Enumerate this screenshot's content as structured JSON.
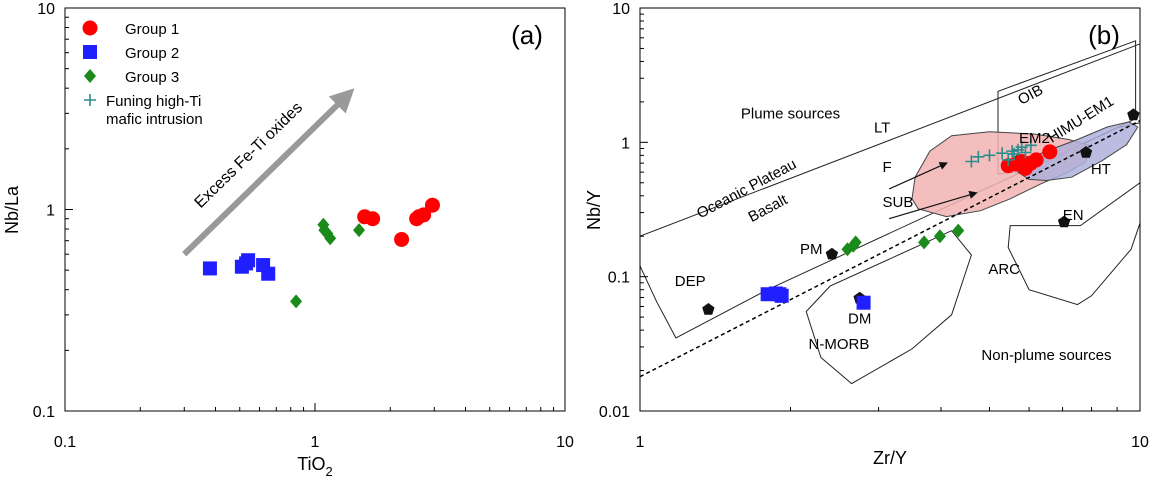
{
  "colors": {
    "group1": "#ff0000",
    "group2": "#1f1fff",
    "group3": "#1a8a1a",
    "funing": "#2b8c8c",
    "reference": "#111111",
    "arrow": "#999999",
    "lt_fill": "#f2b3b3",
    "ht_fill": "#aeb0dc"
  },
  "chart_data": [
    {
      "type": "scatter",
      "panel_label": "(a)",
      "xlabel": "TiO",
      "xlabel_sub": "2",
      "ylabel": "Nb/La",
      "xscale": "log",
      "yscale": "log",
      "xlim": [
        0.1,
        10
      ],
      "ylim": [
        0.1,
        10
      ],
      "x_ticks": [
        "0.1",
        "1",
        "10"
      ],
      "y_ticks": [
        "0.1",
        "1",
        "10"
      ],
      "grid": false,
      "legend_position": "top-left",
      "legend": [
        {
          "label": "Group 1",
          "marker": "circle",
          "color": "#ff0000"
        },
        {
          "label": "Group 2",
          "marker": "square",
          "color": "#1f1fff"
        },
        {
          "label": "Group 3",
          "marker": "diamond",
          "color": "#1a8a1a"
        },
        {
          "label": "Funing high-Ti",
          "label2": "mafic intrusion",
          "marker": "plus",
          "color": "#2b8c8c"
        }
      ],
      "trend_arrow": {
        "label": "Excess Fe-Ti oxides",
        "from": [
          0.3,
          0.6
        ],
        "to": [
          1.35,
          3.7
        ]
      },
      "series": [
        {
          "name": "Group 1",
          "marker": "circle",
          "points": [
            [
              1.58,
              0.92
            ],
            [
              1.7,
              0.9
            ],
            [
              2.55,
              0.9
            ],
            [
              2.72,
              0.94
            ],
            [
              2.6,
              0.92
            ],
            [
              2.95,
              1.05
            ],
            [
              2.22,
              0.71
            ]
          ]
        },
        {
          "name": "Group 2",
          "marker": "square",
          "points": [
            [
              0.38,
              0.51
            ],
            [
              0.51,
              0.52
            ],
            [
              0.54,
              0.56
            ],
            [
              0.53,
              0.54
            ],
            [
              0.62,
              0.53
            ],
            [
              0.65,
              0.48
            ]
          ]
        },
        {
          "name": "Group 3",
          "marker": "diamond",
          "points": [
            [
              1.08,
              0.84
            ],
            [
              1.09,
              0.79
            ],
            [
              1.12,
              0.76
            ],
            [
              1.15,
              0.72
            ],
            [
              1.5,
              0.79
            ],
            [
              0.84,
              0.35
            ]
          ]
        }
      ]
    },
    {
      "type": "scatter",
      "panel_label": "(b)",
      "xlabel": "Zr/Y",
      "ylabel": "Nb/Y",
      "xscale": "log",
      "yscale": "log",
      "xlim": [
        1,
        10
      ],
      "ylim": [
        0.01,
        10
      ],
      "x_ticks": [
        "1",
        "10"
      ],
      "y_ticks": [
        "0.01",
        "0.1",
        "1",
        "10"
      ],
      "grid": false,
      "legend_position": "none",
      "region_labels": [
        {
          "text": "Plume sources",
          "at": [
            2.0,
            1.5
          ]
        },
        {
          "text": "Non-plume sources",
          "at": [
            6.5,
            0.024
          ]
        },
        {
          "text": "Oceanic Plateau",
          "at": [
            1.65,
            0.42
          ],
          "rotate": -28
        },
        {
          "text": "Basalt",
          "at": [
            1.82,
            0.3
          ],
          "rotate": -28
        },
        {
          "text": "OIB",
          "at": [
            6.1,
            2.1
          ],
          "rotate": -28
        },
        {
          "text": "HIMU-EM1",
          "at": [
            7.7,
            1.38
          ],
          "rotate": -32
        },
        {
          "text": "LT",
          "at": [
            3.05,
            1.18
          ]
        },
        {
          "text": "EM2",
          "at": [
            6.15,
            0.99
          ]
        },
        {
          "text": "HT",
          "at": [
            8.35,
            0.58
          ]
        },
        {
          "text": "F",
          "at": [
            3.12,
            0.6
          ]
        },
        {
          "text": "SUB",
          "at": [
            3.28,
            0.33
          ]
        },
        {
          "text": "EN",
          "at": [
            7.35,
            0.265
          ]
        },
        {
          "text": "ARC",
          "at": [
            5.35,
            0.105
          ]
        },
        {
          "text": "PM",
          "at": [
            2.2,
            0.148
          ]
        },
        {
          "text": "DEP",
          "at": [
            1.26,
            0.085
          ]
        },
        {
          "text": "DM",
          "at": [
            2.75,
            0.045
          ]
        },
        {
          "text": "N-MORB",
          "at": [
            2.5,
            0.029
          ]
        }
      ],
      "reference_points": [
        {
          "name": "DEP",
          "x": 1.37,
          "y": 0.057
        },
        {
          "name": "PM",
          "x": 2.42,
          "y": 0.147
        },
        {
          "name": "DM",
          "x": 2.75,
          "y": 0.069
        },
        {
          "name": "EN",
          "x": 7.05,
          "y": 0.255
        },
        {
          "name": "EM2",
          "x": 5.7,
          "y": 0.73
        },
        {
          "name": "HIMU",
          "x": 7.8,
          "y": 0.84
        },
        {
          "name": "EM1",
          "x": 9.7,
          "y": 1.6
        }
      ],
      "polygons": [
        {
          "name": "Oceanic Plateau Basalt field",
          "points": [
            [
              1.08,
              0.065
            ],
            [
              1.18,
              0.035
            ],
            [
              1.8,
              0.08
            ],
            [
              9.0,
              1.28
            ],
            [
              10.0,
              1.4
            ],
            [
              10.0,
              5.4
            ],
            [
              1.0,
              0.2
            ],
            [
              1.0,
              0.12
            ]
          ]
        },
        {
          "name": "OIB field",
          "points": [
            [
              5.2,
              0.58
            ],
            [
              5.2,
              2.4
            ],
            [
              9.8,
              5.7
            ],
            [
              9.8,
              1.5
            ],
            [
              6.0,
              0.62
            ]
          ]
        },
        {
          "name": "ARC field",
          "points": [
            [
              5.45,
              0.165
            ],
            [
              6.0,
              0.08
            ],
            [
              7.5,
              0.062
            ],
            [
              8.0,
              0.072
            ],
            [
              9.6,
              0.16
            ],
            [
              10.0,
              0.25
            ],
            [
              10.0,
              0.5
            ],
            [
              7.6,
              0.24
            ],
            [
              5.5,
              0.24
            ]
          ]
        },
        {
          "name": "N-MORB field",
          "points": [
            [
              2.3,
              0.025
            ],
            [
              2.65,
              0.016
            ],
            [
              3.5,
              0.029
            ],
            [
              4.2,
              0.052
            ],
            [
              4.6,
              0.145
            ],
            [
              4.2,
              0.22
            ],
            [
              2.4,
              0.085
            ],
            [
              2.15,
              0.055
            ]
          ]
        }
      ],
      "filled_fields": [
        {
          "name": "LT",
          "points": [
            [
              3.6,
              0.32
            ],
            [
              3.5,
              0.38
            ],
            [
              3.55,
              0.55
            ],
            [
              3.8,
              0.86
            ],
            [
              4.2,
              1.12
            ],
            [
              5.0,
              1.2
            ],
            [
              6.2,
              1.15
            ],
            [
              7.2,
              1.05
            ],
            [
              7.9,
              0.95
            ],
            [
              7.8,
              0.72
            ],
            [
              7.2,
              0.6
            ],
            [
              6.4,
              0.5
            ],
            [
              5.5,
              0.38
            ],
            [
              4.8,
              0.31
            ],
            [
              4.1,
              0.28
            ]
          ]
        },
        {
          "name": "HT",
          "points": [
            [
              5.7,
              0.6
            ],
            [
              5.9,
              0.74
            ],
            [
              6.5,
              0.86
            ],
            [
              7.5,
              1.05
            ],
            [
              8.6,
              1.3
            ],
            [
              9.5,
              1.42
            ],
            [
              9.9,
              1.3
            ],
            [
              9.4,
              0.96
            ],
            [
              8.4,
              0.73
            ],
            [
              7.3,
              0.55
            ],
            [
              6.5,
              0.52
            ],
            [
              6.0,
              0.53
            ]
          ]
        }
      ],
      "reference_lines": [
        {
          "name": "dashed trend",
          "style": "dashed",
          "from": [
            1.0,
            0.018
          ],
          "to": [
            10.0,
            1.45
          ]
        }
      ],
      "trend_arrows": [
        {
          "from": [
            3.15,
            0.45
          ],
          "to": [
            4.1,
            0.7
          ]
        },
        {
          "from": [
            3.15,
            0.27
          ],
          "to": [
            4.7,
            0.42
          ]
        }
      ],
      "series": [
        {
          "name": "Group 1",
          "marker": "circle",
          "points": [
            [
              5.45,
              0.67
            ],
            [
              5.65,
              0.69
            ],
            [
              5.8,
              0.72
            ],
            [
              6.05,
              0.7
            ],
            [
              5.95,
              0.68
            ],
            [
              5.9,
              0.64
            ],
            [
              6.2,
              0.74
            ],
            [
              6.6,
              0.85
            ]
          ]
        },
        {
          "name": "Group 2",
          "marker": "square",
          "points": [
            [
              1.8,
              0.074
            ],
            [
              1.87,
              0.075
            ],
            [
              1.92,
              0.072
            ],
            [
              1.9,
              0.074
            ],
            [
              2.8,
              0.064
            ]
          ]
        },
        {
          "name": "Group 3",
          "marker": "diamond",
          "points": [
            [
              2.6,
              0.16
            ],
            [
              2.67,
              0.17
            ],
            [
              2.7,
              0.18
            ],
            [
              3.7,
              0.18
            ],
            [
              3.98,
              0.2
            ],
            [
              4.33,
              0.22
            ]
          ]
        },
        {
          "name": "Funing high-Ti mafic intrusion",
          "marker": "plus",
          "points": [
            [
              4.6,
              0.72
            ],
            [
              4.75,
              0.78
            ],
            [
              5.0,
              0.8
            ],
            [
              5.3,
              0.83
            ],
            [
              5.55,
              0.86
            ],
            [
              5.7,
              0.88
            ],
            [
              5.8,
              0.92
            ],
            [
              5.6,
              0.82
            ],
            [
              5.9,
              0.84
            ],
            [
              6.05,
              0.95
            ],
            [
              5.45,
              0.74
            ]
          ]
        }
      ]
    }
  ]
}
